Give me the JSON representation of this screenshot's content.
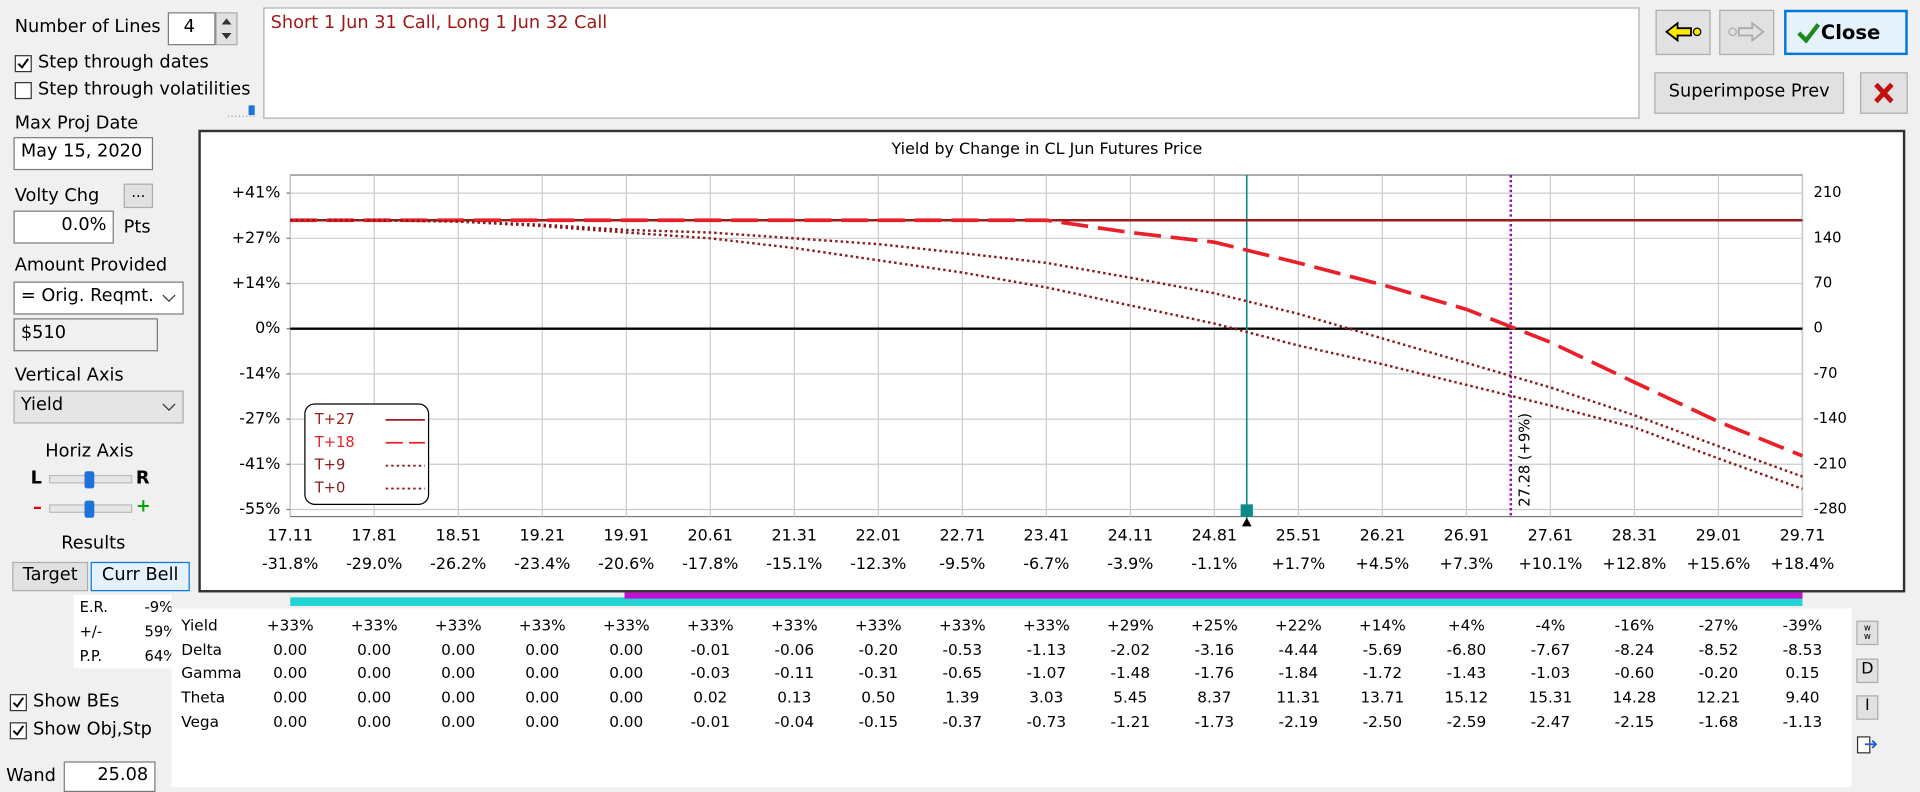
{
  "description": "Short 1 Jun 31 Call, Long 1 Jun 32 Call",
  "controls": {
    "number_of_lines_label": "Number of Lines",
    "number_of_lines": "4",
    "step_dates": {
      "label": "Step through dates",
      "checked": true
    },
    "step_vols": {
      "label": "Step through volatilities",
      "checked": false
    },
    "max_proj_date_label": "Max Proj Date",
    "max_proj_date": "May 15, 2020",
    "volty_chg_label": "Volty Chg",
    "volty_button": "...",
    "volty_chg": "0.0%",
    "pts": "Pts",
    "amount_provided_label": "Amount Provided",
    "amount_provided": "= Orig. Reqmt.",
    "amount": "$510",
    "vertical_axis_label": "Vertical Axis",
    "vertical_axis": "Yield",
    "horiz_axis_label": "Horiz Axis",
    "left": "L",
    "right": "R",
    "minus": "–",
    "plus": "+",
    "results_label": "Results",
    "target": "Target",
    "curr_bell": "Curr Bell",
    "stats": [
      {
        "label": "E.R.",
        "value": "-9%"
      },
      {
        "label": "+/-",
        "value": "59%"
      },
      {
        "label": "P.P.",
        "value": "64%"
      }
    ],
    "show_bes": {
      "label": "Show BEs",
      "checked": true
    },
    "show_obj": {
      "label": "Show Obj,Stp",
      "checked": true
    },
    "wand_label": "Wand",
    "wand": "25.08"
  },
  "buttons": {
    "close": "Close",
    "superimpose": "Superimpose Prev",
    "ww": "ww",
    "d": "D",
    "i": "I"
  },
  "chart_data": {
    "type": "line",
    "title": "Yield by Change in CL Jun Futures Price",
    "xlim": [
      17.11,
      29.71
    ],
    "xticks": [
      17.11,
      17.81,
      18.51,
      19.21,
      19.91,
      20.61,
      21.31,
      22.01,
      22.71,
      23.41,
      24.11,
      24.81,
      25.51,
      26.21,
      26.91,
      27.61,
      28.31,
      29.01,
      29.71
    ],
    "xtick_pct_labels": [
      "-31.8%",
      "-29.0%",
      "-26.2%",
      "-23.4%",
      "-20.6%",
      "-17.8%",
      "-15.1%",
      "-12.3%",
      "-9.5%",
      "-6.7%",
      "-3.9%",
      "-1.1%",
      "+1.7%",
      "+4.5%",
      "+7.3%",
      "+10.1%",
      "+12.8%",
      "+15.6%",
      "+18.4%"
    ],
    "ylim": [
      -57.06,
      46.67
    ],
    "yticks": [
      {
        "value": 41.18,
        "label": "+41%"
      },
      {
        "value": 27.45,
        "label": "+27%"
      },
      {
        "value": 13.73,
        "label": "+14%"
      },
      {
        "value": 0,
        "label": "0%"
      },
      {
        "value": -13.73,
        "label": "-14%"
      },
      {
        "value": -27.45,
        "label": "-27%"
      },
      {
        "value": -41.18,
        "label": "-41%"
      },
      {
        "value": -54.9,
        "label": "-55%"
      }
    ],
    "y2lim": [
      -291,
      238
    ],
    "y2ticks": [
      210,
      140,
      70,
      0,
      -70,
      -140,
      -210,
      -280
    ],
    "grid": true,
    "current_price": 25.08,
    "marker": {
      "value": 27.28,
      "label": "27.28 (+9%)"
    },
    "series": [
      {
        "name": "T+27",
        "color": "#9b1c1c",
        "style": "solid",
        "axis": "y2",
        "values": [
          168,
          168,
          168,
          168,
          168,
          168,
          168,
          168,
          168,
          168,
          168,
          168,
          168,
          168,
          168,
          168,
          168,
          168,
          168
        ]
      },
      {
        "name": "T+18",
        "color": "#e8202a",
        "style": "dashed",
        "axis": "y2",
        "values": [
          168,
          168,
          168,
          168,
          168,
          168,
          168,
          168,
          168,
          168,
          149,
          134,
          102,
          68,
          30,
          -21,
          -83,
          -144,
          -197
        ]
      },
      {
        "name": "T+9",
        "color": "#8b1a1a",
        "style": "dotted",
        "axis": "y2",
        "values": [
          168,
          168,
          166,
          161,
          153,
          149,
          140,
          131,
          117,
          102,
          79,
          55,
          23,
          -15,
          -53,
          -91,
          -134,
          -182,
          -229
        ]
      },
      {
        "name": "T+0",
        "color": "#8b1a1a",
        "style": "dotted",
        "axis": "y2",
        "values": [
          168,
          168,
          166,
          159,
          149,
          140,
          125,
          106,
          87,
          64,
          36,
          8,
          -26,
          -55,
          -87,
          -119,
          -153,
          -201,
          -248
        ]
      }
    ]
  },
  "table": {
    "rows": [
      {
        "label": "Yield",
        "values": [
          "+33%",
          "+33%",
          "+33%",
          "+33%",
          "+33%",
          "+33%",
          "+33%",
          "+33%",
          "+33%",
          "+33%",
          "+29%",
          "+25%",
          "+22%",
          "+14%",
          "+4%",
          "-4%",
          "-16%",
          "-27%",
          "-39%"
        ]
      },
      {
        "label": "Delta",
        "values": [
          "0.00",
          "0.00",
          "0.00",
          "0.00",
          "0.00",
          "-0.01",
          "-0.06",
          "-0.20",
          "-0.53",
          "-1.13",
          "-2.02",
          "-3.16",
          "-4.44",
          "-5.69",
          "-6.80",
          "-7.67",
          "-8.24",
          "-8.52",
          "-8.53"
        ]
      },
      {
        "label": "Gamma",
        "values": [
          "0.00",
          "0.00",
          "0.00",
          "0.00",
          "0.00",
          "-0.03",
          "-0.11",
          "-0.31",
          "-0.65",
          "-1.07",
          "-1.48",
          "-1.76",
          "-1.84",
          "-1.72",
          "-1.43",
          "-1.03",
          "-0.60",
          "-0.20",
          "0.15"
        ]
      },
      {
        "label": "Theta",
        "values": [
          "0.00",
          "0.00",
          "0.00",
          "0.00",
          "0.00",
          "0.02",
          "0.13",
          "0.50",
          "1.39",
          "3.03",
          "5.45",
          "8.37",
          "11.31",
          "13.71",
          "15.12",
          "15.31",
          "14.28",
          "12.21",
          "9.40"
        ]
      },
      {
        "label": "Vega",
        "values": [
          "0.00",
          "0.00",
          "0.00",
          "0.00",
          "0.00",
          "-0.01",
          "-0.04",
          "-0.15",
          "-0.37",
          "-0.73",
          "-1.21",
          "-1.73",
          "-2.19",
          "-2.50",
          "-2.59",
          "-2.47",
          "-2.15",
          "-1.68",
          "-1.13"
        ]
      }
    ]
  }
}
